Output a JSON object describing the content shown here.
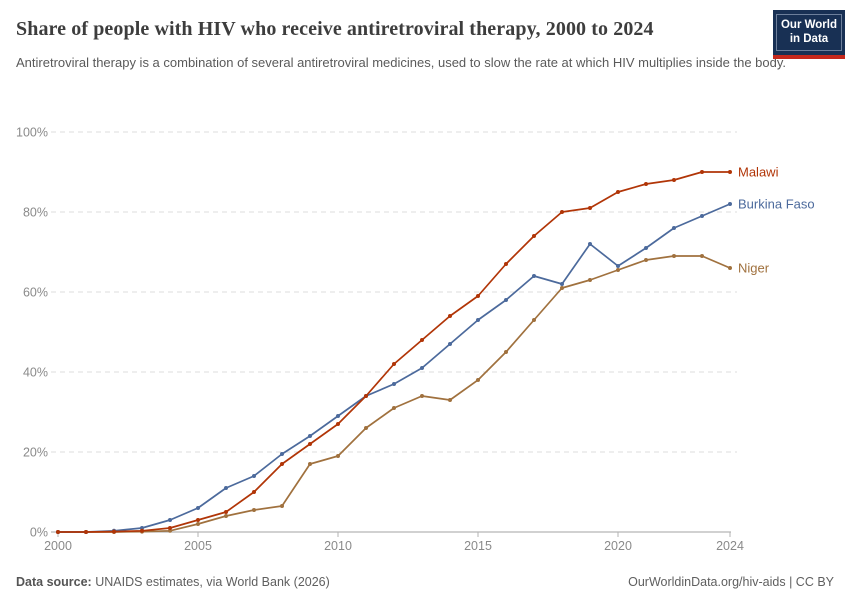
{
  "header": {
    "title": "Share of people with HIV who receive antiretroviral therapy, 2000 to 2024",
    "subtitle": "Antiretroviral therapy is a combination of several antiretroviral medicines, used to slow the rate at which HIV multiplies inside the body.",
    "logo": {
      "line1": "Our World",
      "line2": "in Data"
    }
  },
  "footer": {
    "source_label": "Data source:",
    "source_text": " UNAIDS estimates, via World Bank (2026)",
    "credit": "OurWorldinData.org/hiv-aids | CC BY"
  },
  "colors": {
    "title": "#3d3d3d",
    "subtitle": "#5a5a5a",
    "tick_label": "#8a8a8a",
    "gridline": "#dcdcdc",
    "axis_line": "#a3a3a3",
    "logo_navy": "#183054",
    "logo_red": "#c5281c"
  },
  "chart_data": {
    "type": "line",
    "title": "Share of people with HIV who receive antiretroviral therapy, 2000 to 2024",
    "xlabel": "",
    "ylabel": "",
    "xlim": [
      2000,
      2024
    ],
    "ylim": [
      0,
      100
    ],
    "grid": "horizontal-dashed",
    "legend_position": "line-end-labels",
    "x": [
      2000,
      2001,
      2002,
      2003,
      2004,
      2005,
      2006,
      2007,
      2008,
      2009,
      2010,
      2011,
      2012,
      2013,
      2014,
      2015,
      2016,
      2017,
      2018,
      2019,
      2020,
      2021,
      2022,
      2023,
      2024
    ],
    "x_ticks": [
      2000,
      2005,
      2010,
      2015,
      2020,
      2024
    ],
    "y_ticks": [
      0,
      20,
      40,
      60,
      80,
      100
    ],
    "y_tick_suffix": "%",
    "series": [
      {
        "name": "Malawi",
        "color": "#b13507",
        "values": [
          0,
          0,
          0.1,
          0.3,
          1,
          3,
          5,
          10,
          17,
          22,
          27,
          34,
          42,
          48,
          54,
          59,
          67,
          74,
          80,
          81,
          85,
          87,
          88,
          90,
          90
        ]
      },
      {
        "name": "Burkina Faso",
        "color": "#4c6a9c",
        "values": [
          0,
          0,
          0.3,
          1,
          3,
          6,
          11,
          14,
          19.5,
          24,
          29,
          34,
          37,
          41,
          47,
          53,
          58,
          64,
          62,
          72,
          66.5,
          71,
          76,
          79,
          82
        ]
      },
      {
        "name": "Niger",
        "color": "#a0713e",
        "values": [
          0,
          0,
          0,
          0.1,
          0.3,
          2,
          4,
          5.5,
          6.5,
          17,
          19,
          26,
          31,
          34,
          33,
          38,
          45,
          53,
          61,
          63,
          65.5,
          68,
          69,
          69,
          66
        ]
      }
    ]
  }
}
